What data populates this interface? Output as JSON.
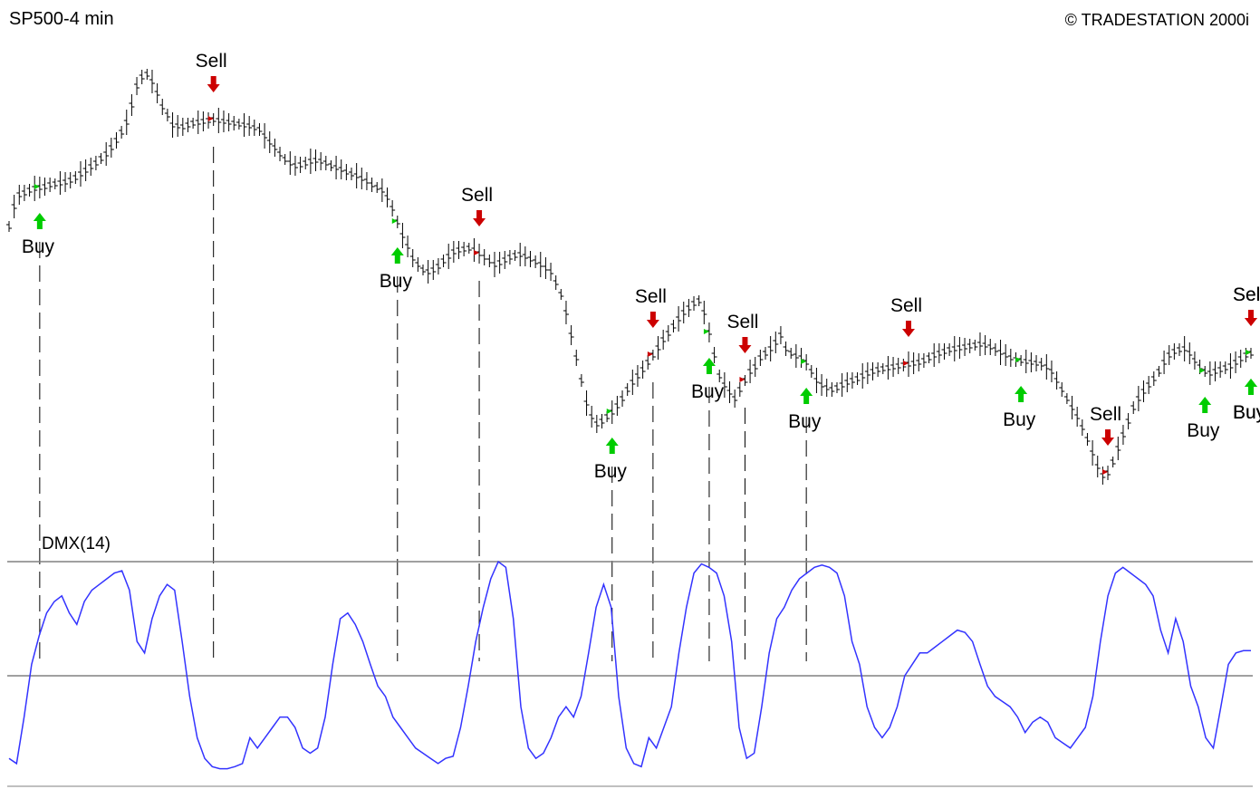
{
  "header": {
    "title": "SP500-4 min",
    "copyright": "© TRADESTATION 2000i"
  },
  "indicator": {
    "label": "DMX(14)"
  },
  "colors": {
    "price_bars": "#000000",
    "dmx_line": "#3333ff",
    "buy_arrow": "#00cc00",
    "sell_arrow": "#cc0000",
    "reference_line": "#808080",
    "dashed_line": "#000000"
  },
  "chart_data": {
    "type": "line",
    "title": "SP500-4 min",
    "panels": [
      {
        "name": "price",
        "series": [
          {
            "values": [
              250,
              228,
              215,
              213,
              210,
              208,
              207,
              206,
              204,
              203,
              202,
              201,
              199,
              196,
              192,
              188,
              184,
              180,
              175,
              170,
              163,
              155,
              146,
              135,
              116,
              95,
              85,
              82,
              90,
              103,
              118,
              127,
              138,
              139,
              140,
              138,
              136,
              135,
              134,
              133,
              132,
              133,
              134,
              135,
              136,
              137,
              138,
              139,
              141,
              143,
              150,
              157,
              163,
              170,
              176,
              180,
              183,
              182,
              180,
              178,
              177,
              178,
              180,
              183,
              185,
              187,
              190,
              192,
              194,
              197,
              200,
              204,
              207,
              210,
              218,
              230,
              245,
              260,
              272,
              285,
              292,
              298,
              300,
              298,
              294,
              288,
              283,
              278,
              276,
              275,
              274,
              276,
              280,
              284,
              288,
              292,
              290,
              287,
              284,
              282,
              281,
              283,
              286,
              289,
              292,
              296,
              300,
              312,
              325,
              345,
              370,
              395,
              420,
              445,
              460,
              468,
              465,
              460,
              455,
              448,
              440,
              430,
              422,
              415,
              408,
              400,
              392,
              384,
              375,
              368,
              360,
              352,
              345,
              340,
              335,
              332,
              345,
              367,
              392,
              415,
              425,
              433,
              440,
              430,
              420,
              410,
              405,
              395,
              390,
              385,
              378,
              370,
              385,
              390,
              393,
              395,
              400,
              410,
              420,
              425,
              428,
              430,
              428,
              425,
              422,
              420,
              418,
              415,
              412,
              410,
              408,
              407,
              406,
              405,
              404,
              403,
              402,
              401,
              400,
              398,
              395,
              392,
              390,
              388,
              386,
              385,
              384,
              383,
              382,
              381,
              380,
              381,
              383,
              386,
              389,
              392,
              395,
              397,
              398,
              399,
              400,
              401,
              402,
              405,
              410,
              420,
              430,
              440,
              450,
              460,
              472,
              485,
              500,
              515,
              525,
              522,
              510,
              495,
              480,
              465,
              450,
              440,
              432,
              425,
              418,
              410,
              400,
              392,
              388,
              386,
              385,
              390,
              398,
              405,
              410,
              412,
              410,
              408,
              406,
              404,
              400,
              396,
              392,
              390
            ]
          }
        ],
        "signals": [
          {
            "label": "Buy",
            "type": "buy"
          },
          {
            "label": "Sell",
            "type": "sell"
          },
          {
            "label": "Buy",
            "type": "buy"
          },
          {
            "label": "Sell",
            "type": "sell"
          },
          {
            "label": "Buy",
            "type": "buy"
          },
          {
            "label": "Sell",
            "type": "sell"
          },
          {
            "label": "Buy",
            "type": "buy"
          },
          {
            "label": "Sell",
            "type": "sell"
          },
          {
            "label": "Buy",
            "type": "buy"
          },
          {
            "label": "Sell",
            "type": "sell"
          },
          {
            "label": "Buy",
            "type": "buy"
          },
          {
            "label": "Sell",
            "type": "sell"
          },
          {
            "label": "Buy",
            "type": "buy"
          },
          {
            "label": "Sell",
            "type": "sell"
          },
          {
            "label": "Buy",
            "type": "buy"
          },
          {
            "label": "Sell",
            "type": "sell"
          },
          {
            "label": "Buy",
            "type": "buy"
          }
        ]
      },
      {
        "name": "DMX(14)",
        "reference_lines": [
          1,
          0
        ],
        "series": [
          {
            "name": "DMX(14)",
            "values": [
              -0.8,
              -0.85,
              -0.4,
              0.1,
              0.35,
              0.55,
              0.65,
              0.7,
              0.55,
              0.45,
              0.65,
              0.75,
              0.8,
              0.85,
              0.9,
              0.92,
              0.75,
              0.3,
              0.2,
              0.5,
              0.7,
              0.8,
              0.75,
              0.3,
              -0.2,
              -0.6,
              -0.8,
              -0.88,
              -0.9,
              -0.9,
              -0.88,
              -0.85,
              -0.6,
              -0.7,
              -0.6,
              -0.5,
              -0.4,
              -0.4,
              -0.5,
              -0.7,
              -0.75,
              -0.7,
              -0.4,
              0.1,
              0.5,
              0.55,
              0.45,
              0.3,
              0.1,
              -0.1,
              -0.2,
              -0.4,
              -0.5,
              -0.6,
              -0.7,
              -0.75,
              -0.8,
              -0.85,
              -0.8,
              -0.78,
              -0.5,
              -0.1,
              0.3,
              0.6,
              0.85,
              1,
              0.95,
              0.5,
              -0.3,
              -0.7,
              -0.8,
              -0.75,
              -0.6,
              -0.4,
              -0.3,
              -0.4,
              -0.2,
              0.2,
              0.6,
              0.8,
              0.6,
              -0.2,
              -0.7,
              -0.85,
              -0.88,
              -0.6,
              -0.7,
              -0.5,
              -0.3,
              0.2,
              0.6,
              0.9,
              0.98,
              0.95,
              0.9,
              0.7,
              0.3,
              -0.5,
              -0.8,
              -0.75,
              -0.3,
              0.2,
              0.5,
              0.6,
              0.75,
              0.85,
              0.9,
              0.95,
              0.97,
              0.95,
              0.9,
              0.7,
              0.3,
              0.1,
              -0.3,
              -0.5,
              -0.6,
              -0.5,
              -0.3,
              0,
              0.1,
              0.2,
              0.2,
              0.25,
              0.3,
              0.35,
              0.4,
              0.38,
              0.3,
              0.1,
              -0.1,
              -0.2,
              -0.25,
              -0.3,
              -0.4,
              -0.55,
              -0.45,
              -0.4,
              -0.45,
              -0.6,
              -0.65,
              -0.7,
              -0.6,
              -0.5,
              -0.2,
              0.3,
              0.7,
              0.9,
              0.95,
              0.9,
              0.85,
              0.8,
              0.7,
              0.4,
              0.2,
              0.5,
              0.3,
              -0.1,
              -0.3,
              -0.6,
              -0.7,
              -0.3,
              0.1,
              0.2,
              0.22,
              0.22
            ]
          }
        ]
      }
    ],
    "grid": false
  }
}
